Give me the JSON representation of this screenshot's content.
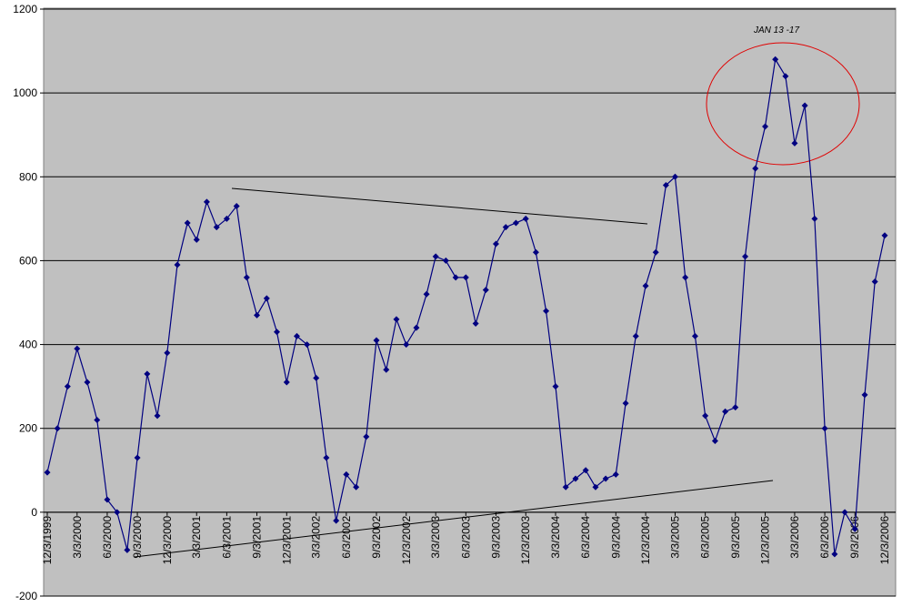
{
  "chart_data": {
    "type": "line",
    "annotation": "JAN 13 -17",
    "x": [
      "12/3/1999",
      "1/3/2000",
      "2/3/2000",
      "3/3/2000",
      "4/3/2000",
      "5/3/2000",
      "6/3/2000",
      "7/3/2000",
      "8/3/2000",
      "9/3/2000",
      "10/3/2000",
      "11/3/2000",
      "12/3/2000",
      "1/3/2001",
      "2/3/2001",
      "3/3/2001",
      "4/3/2001",
      "5/3/2001",
      "6/3/2001",
      "7/3/2001",
      "8/3/2001",
      "9/3/2001",
      "10/3/2001",
      "11/3/2001",
      "12/3/2001",
      "1/3/2002",
      "2/3/2002",
      "3/3/2002",
      "4/3/2002",
      "5/3/2002",
      "6/3/2002",
      "7/3/2002",
      "8/3/2002",
      "9/3/2002",
      "10/3/2002",
      "11/3/2002",
      "12/3/2002",
      "1/3/2003",
      "2/3/2003",
      "3/3/2003",
      "4/3/2003",
      "5/3/2003",
      "6/3/2003",
      "7/3/2003",
      "8/3/2003",
      "9/3/2003",
      "10/3/2003",
      "11/3/2003",
      "12/3/2003",
      "1/3/2004",
      "2/3/2004",
      "3/3/2004",
      "4/3/2004",
      "5/3/2004",
      "6/3/2004",
      "7/3/2004",
      "8/3/2004",
      "9/3/2004",
      "10/3/2004",
      "11/3/2004",
      "12/3/2004",
      "1/3/2005",
      "2/3/2005",
      "3/3/2005",
      "4/3/2005",
      "5/3/2005",
      "6/3/2005",
      "7/3/2005",
      "8/3/2005",
      "9/3/2005",
      "10/3/2005",
      "11/3/2005",
      "12/3/2005",
      "1/3/2006",
      "2/3/2006",
      "3/3/2006",
      "4/3/2006",
      "5/3/2006",
      "6/3/2006",
      "7/3/2006",
      "8/3/2006",
      "9/3/2006",
      "10/3/2006",
      "11/3/2006",
      "12/3/2006"
    ],
    "series": [
      {
        "color": "#000080",
        "values": [
          95,
          200,
          300,
          390,
          310,
          220,
          30,
          0,
          -90,
          130,
          330,
          230,
          380,
          590,
          690,
          650,
          740,
          680,
          700,
          730,
          560,
          470,
          510,
          430,
          310,
          420,
          400,
          320,
          130,
          -20,
          90,
          60,
          180,
          410,
          340,
          460,
          400,
          440,
          520,
          610,
          600,
          560,
          560,
          450,
          530,
          640,
          680,
          690,
          700,
          620,
          480,
          300,
          60,
          80,
          100,
          60,
          80,
          90,
          260,
          420,
          540,
          620,
          780,
          800,
          560,
          420,
          230,
          170,
          240,
          250,
          610,
          820,
          920,
          1080,
          1040,
          880,
          970,
          700,
          200,
          -100,
          0,
          -40,
          280,
          550,
          660
        ]
      }
    ],
    "xlim": [
      "12/3/1999",
      "12/3/2006"
    ],
    "xticks": [
      "12/3/1999",
      "3/3/2000",
      "6/3/2000",
      "9/3/2000",
      "12/3/2000",
      "3/3/2001",
      "6/3/2001",
      "9/3/2001",
      "12/3/2001",
      "3/3/2002",
      "6/3/2002",
      "9/3/2002",
      "12/3/2002",
      "3/3/2003",
      "6/3/2003",
      "9/3/2003",
      "12/3/2003",
      "3/3/2004",
      "6/3/2004",
      "9/3/2004",
      "12/3/2004",
      "3/3/2005",
      "6/3/2005",
      "9/3/2005",
      "12/3/2005",
      "3/3/2006",
      "6/3/2006",
      "9/3/2006",
      "12/3/2006"
    ],
    "ylim": [
      -200,
      1200
    ],
    "yticks": [
      -200,
      0,
      200,
      400,
      600,
      800,
      1000,
      1200
    ],
    "grid": true
  }
}
